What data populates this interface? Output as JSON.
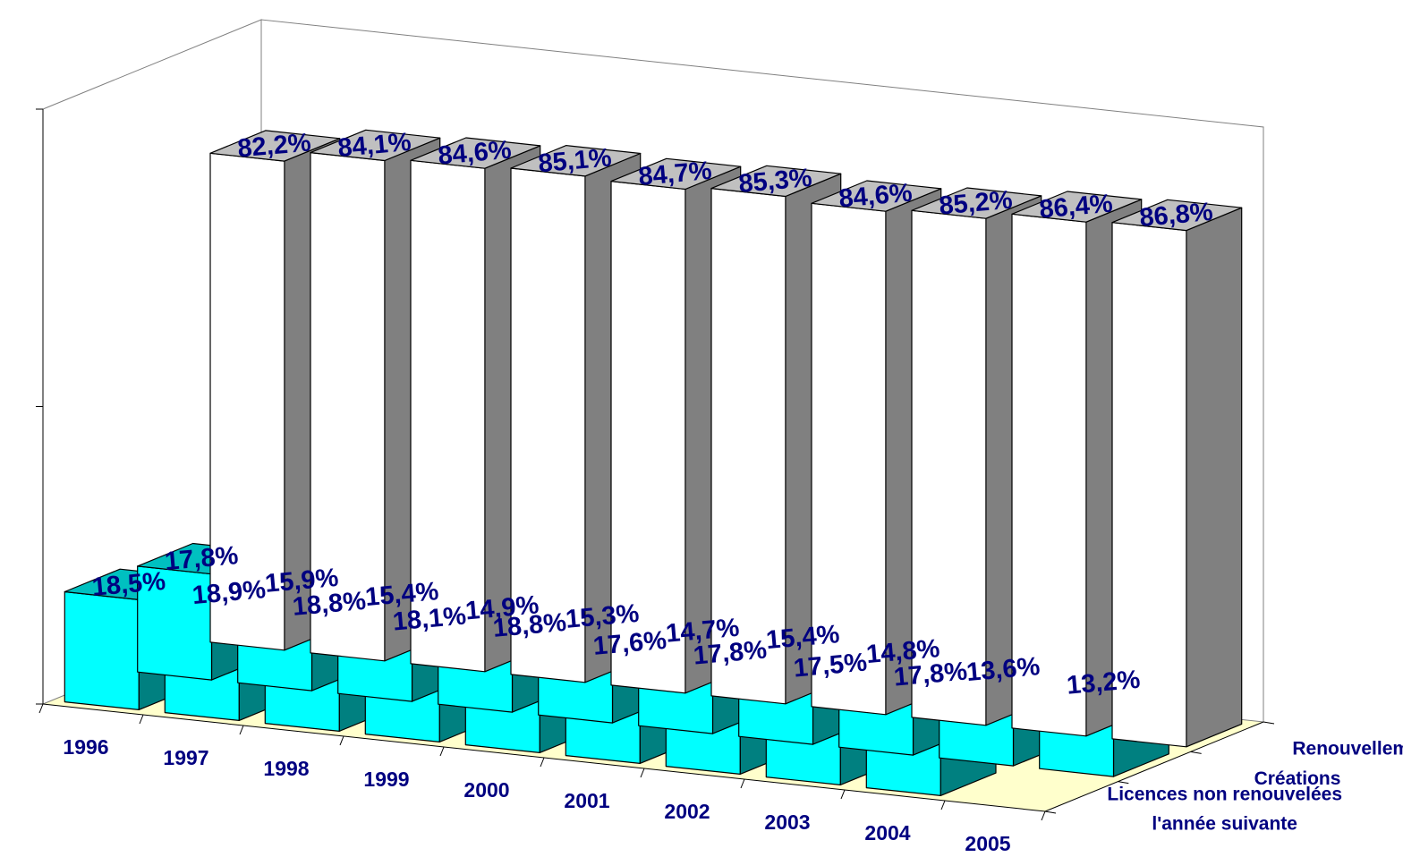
{
  "chart_data": {
    "type": "bar",
    "style": "3d-bar",
    "categories": [
      "1996",
      "1997",
      "1998",
      "1999",
      "2000",
      "2001",
      "2002",
      "2003",
      "2004",
      "2005"
    ],
    "series": [
      {
        "name": "Renouvellements",
        "values": [
          82.2,
          84.1,
          84.6,
          85.1,
          84.7,
          85.3,
          84.6,
          85.2,
          86.4,
          86.8
        ],
        "labels": [
          "82,2%",
          "84,1%",
          "84,6%",
          "85,1%",
          "84,7%",
          "85,3%",
          "84,6%",
          "85,2%",
          "86,4%",
          "86,8%"
        ],
        "color": "#ffffff"
      },
      {
        "name": "Créations",
        "values": [
          17.8,
          15.9,
          15.4,
          14.9,
          15.3,
          14.7,
          15.4,
          14.8,
          13.6,
          13.2
        ],
        "labels": [
          "17,8%",
          "15,9%",
          "15,4%",
          "14,9%",
          "15,3%",
          "14,7%",
          "15,4%",
          "14,8%",
          "13,6%",
          "13,2%"
        ],
        "color": "#00ffff"
      },
      {
        "name": "Licences non renouvelées l'année suivante",
        "name_lines": [
          "Licences non renouvelées",
          "l'année suivante"
        ],
        "values": [
          18.5,
          18.9,
          18.8,
          18.1,
          18.8,
          17.6,
          17.8,
          17.5,
          17.8,
          null
        ],
        "labels": [
          "18,5%",
          "18,9%",
          "18,8%",
          "18,1%",
          "18,8%",
          "17,6%",
          "17,8%",
          "17,5%",
          "17,8%",
          ""
        ],
        "color": "#00ffff"
      }
    ],
    "ylim": [
      0,
      100
    ],
    "grid": false,
    "legend": "none",
    "colors": {
      "floor": "#ffffcc",
      "label_text": "#000080",
      "renewal_top": "#c0c0c0",
      "renewal_side": "#808080",
      "cyan_top": "#00c0c0",
      "cyan_side": "#008080",
      "wall_lines": "#808080"
    }
  }
}
